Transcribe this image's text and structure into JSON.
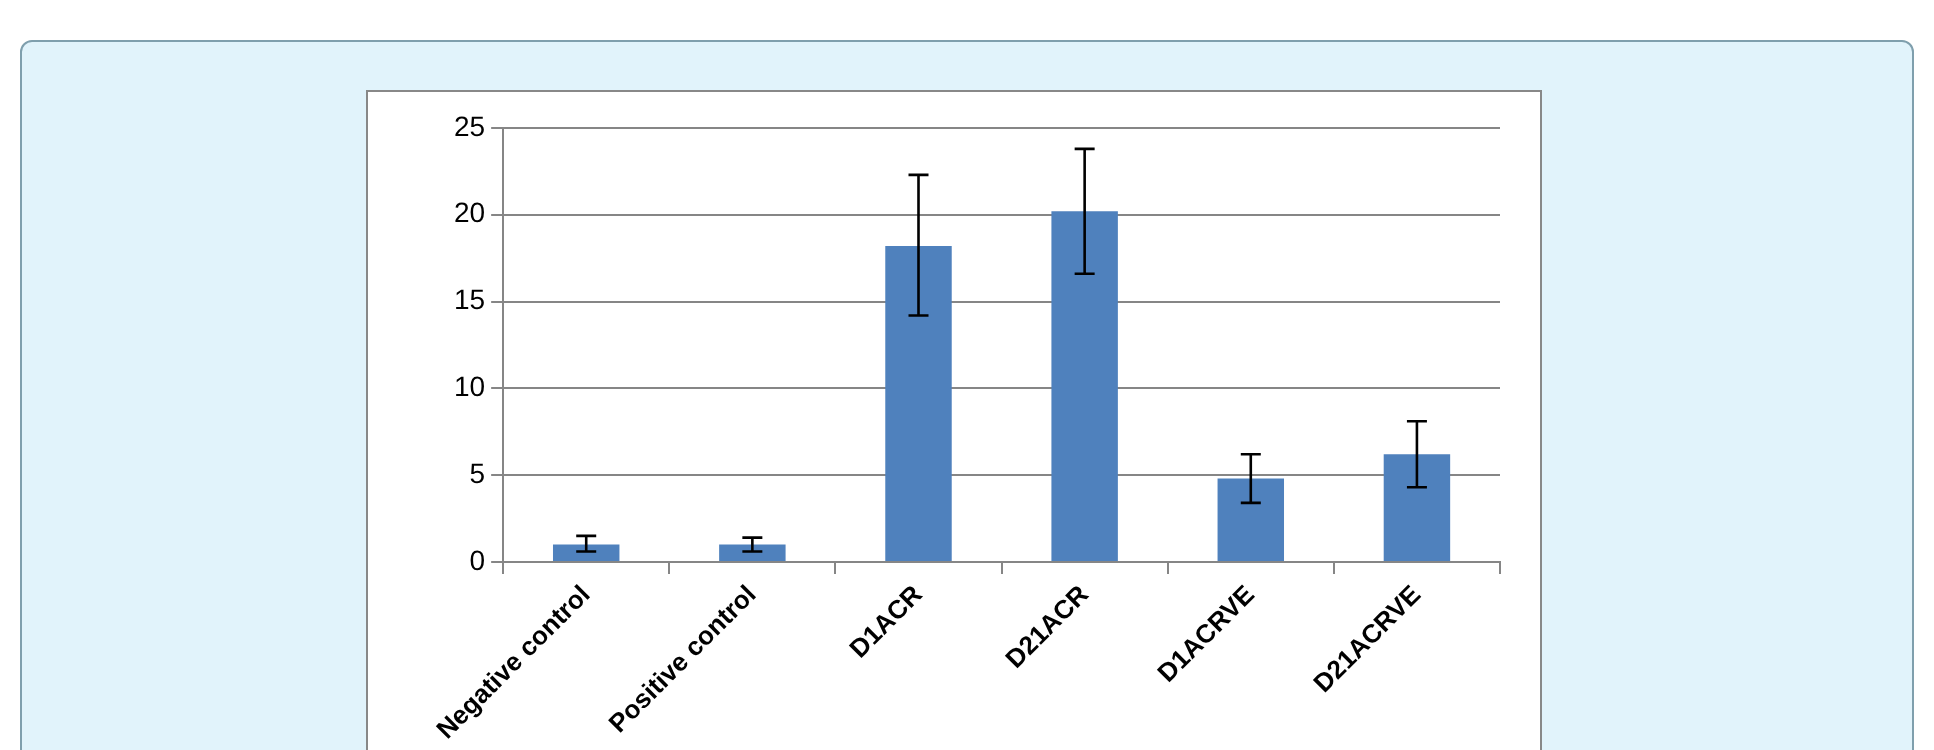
{
  "chart_data": {
    "type": "bar",
    "categories": [
      "Negative control",
      "Positive control",
      "D1ACR",
      "D21ACR",
      "D1ACRVE",
      "D21ACRVE"
    ],
    "values": [
      1,
      1,
      18.2,
      20.2,
      4.8,
      6.2
    ],
    "color": "#4f81bd",
    "errors": [
      [
        0.6,
        1.5
      ],
      [
        0.6,
        1.4
      ],
      [
        14.2,
        22.3
      ],
      [
        16.6,
        23.8
      ],
      [
        3.4,
        6.2
      ],
      [
        4.3,
        8.1
      ]
    ],
    "ylim": [
      0,
      25
    ],
    "yticks": [
      0,
      5,
      10,
      15,
      20,
      25
    ],
    "grid": "y",
    "legend": false
  }
}
